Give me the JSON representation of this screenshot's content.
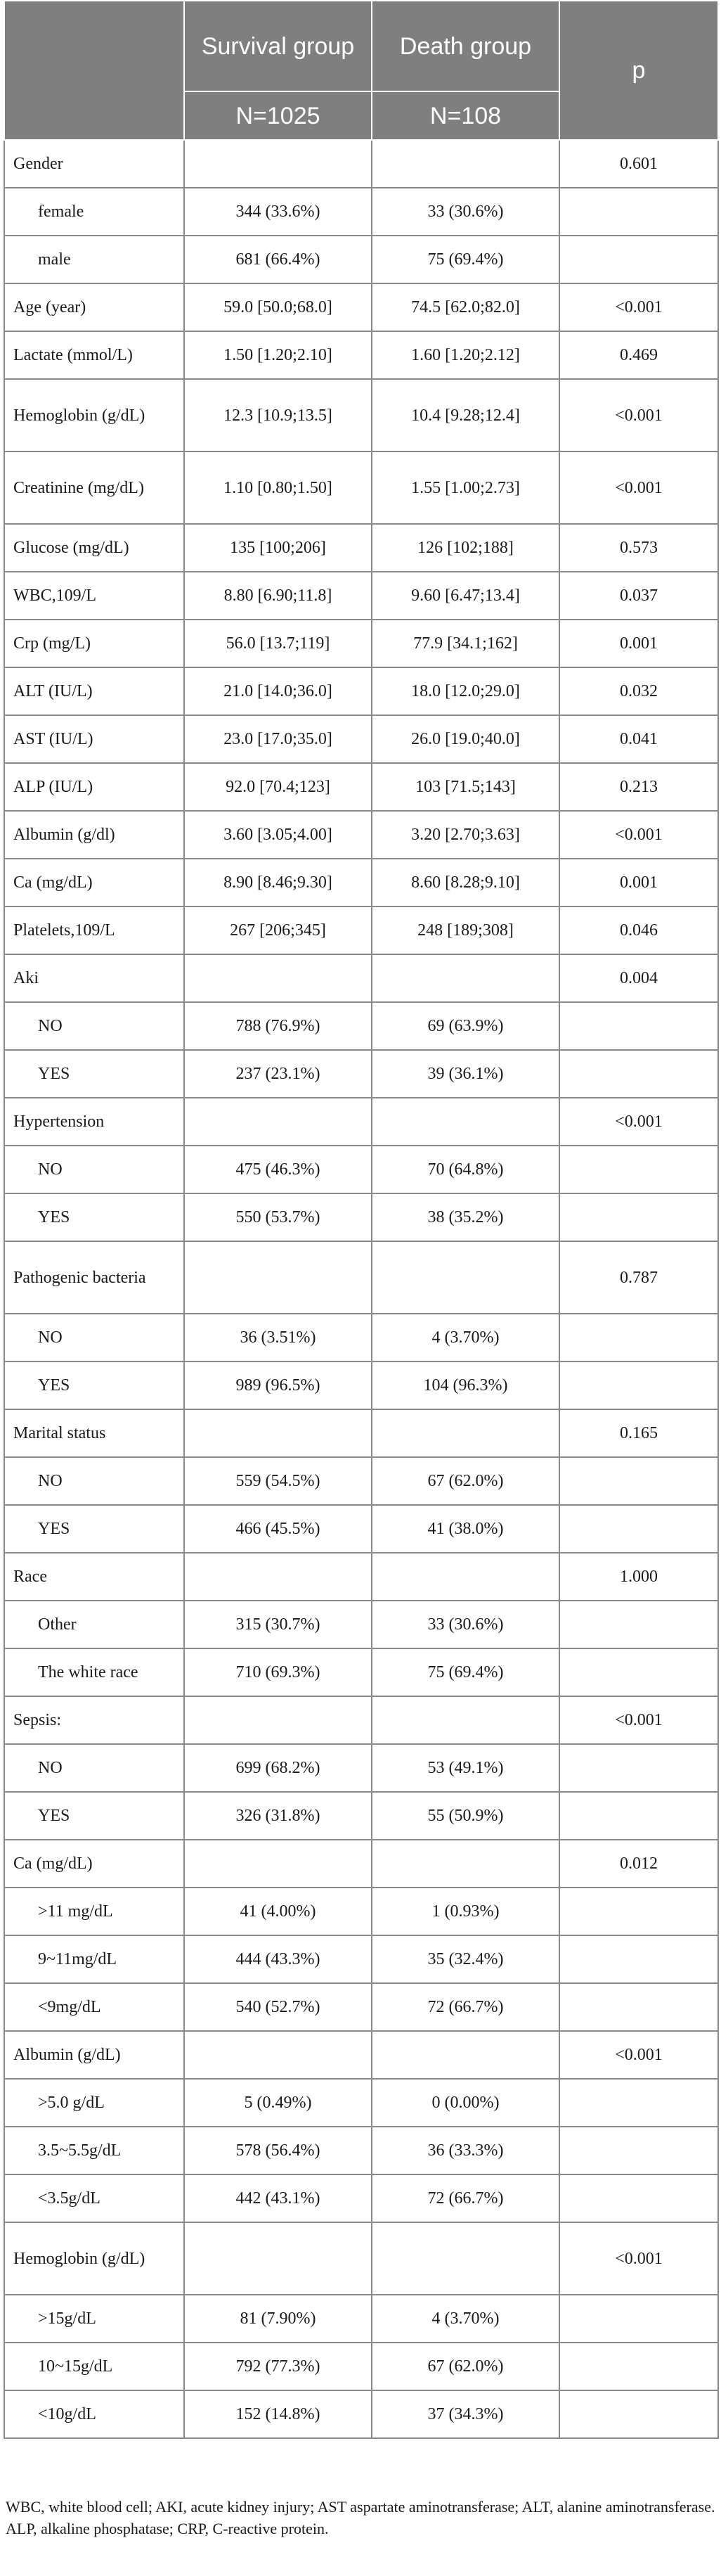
{
  "header": {
    "col_survival": "Survival group",
    "col_death": "Death group",
    "col_p": "p",
    "n_survival": "N=1025",
    "n_death": "N=108"
  },
  "rows": [
    {
      "name": "Gender",
      "sub": false,
      "s": "",
      "d": "",
      "p": "0.601"
    },
    {
      "name": "female",
      "sub": true,
      "s": "344 (33.6%)",
      "d": "33 (30.6%)",
      "p": ""
    },
    {
      "name": "male",
      "sub": true,
      "s": "681 (66.4%)",
      "d": "75 (69.4%)",
      "p": ""
    },
    {
      "name": "Age (year)",
      "sub": false,
      "s": "59.0 [50.0;68.0]",
      "d": "74.5 [62.0;82.0]",
      "p": "<0.001"
    },
    {
      "name": "Lactate (mmol/L)",
      "sub": false,
      "s": "1.50 [1.20;2.10]",
      "d": "1.60 [1.20;2.12]",
      "p": "0.469"
    },
    {
      "name": "Hemoglobin (g/dL)",
      "sub": false,
      "tall": true,
      "s": "12.3 [10.9;13.5]",
      "d": "10.4 [9.28;12.4]",
      "p": "<0.001"
    },
    {
      "name": "Creatinine (mg/dL)",
      "sub": false,
      "tall": true,
      "s": "1.10 [0.80;1.50]",
      "d": "1.55 [1.00;2.73]",
      "p": "<0.001"
    },
    {
      "name": "Glucose (mg/dL)",
      "sub": false,
      "s": "135 [100;206]",
      "d": "126 [102;188]",
      "p": "0.573"
    },
    {
      "name": "WBC,109/L",
      "sub": false,
      "s": "8.80 [6.90;11.8]",
      "d": "9.60 [6.47;13.4]",
      "p": "0.037"
    },
    {
      "name": "Crp (mg/L)",
      "sub": false,
      "s": "56.0 [13.7;119]",
      "d": "77.9 [34.1;162]",
      "p": "0.001"
    },
    {
      "name": "ALT (IU/L)",
      "sub": false,
      "s": "21.0 [14.0;36.0]",
      "d": "18.0 [12.0;29.0]",
      "p": "0.032"
    },
    {
      "name": "AST (IU/L)",
      "sub": false,
      "s": "23.0 [17.0;35.0]",
      "d": "26.0 [19.0;40.0]",
      "p": "0.041"
    },
    {
      "name": "ALP (IU/L)",
      "sub": false,
      "s": "92.0 [70.4;123]",
      "d": "103 [71.5;143]",
      "p": "0.213"
    },
    {
      "name": "Albumin (g/dl)",
      "sub": false,
      "s": "3.60 [3.05;4.00]",
      "d": "3.20 [2.70;3.63]",
      "p": "<0.001"
    },
    {
      "name": "Ca (mg/dL)",
      "sub": false,
      "s": "8.90 [8.46;9.30]",
      "d": "8.60 [8.28;9.10]",
      "p": "0.001"
    },
    {
      "name": "Platelets,109/L",
      "sub": false,
      "s": "267 [206;345]",
      "d": "248 [189;308]",
      "p": "0.046"
    },
    {
      "name": "Aki",
      "sub": false,
      "s": "",
      "d": "",
      "p": "0.004"
    },
    {
      "name": "NO",
      "sub": true,
      "s": "788 (76.9%)",
      "d": "69 (63.9%)",
      "p": ""
    },
    {
      "name": "YES",
      "sub": true,
      "s": "237 (23.1%)",
      "d": "39 (36.1%)",
      "p": ""
    },
    {
      "name": "Hypertension",
      "sub": false,
      "s": "",
      "d": "",
      "p": "<0.001"
    },
    {
      "name": "NO",
      "sub": true,
      "s": "475 (46.3%)",
      "d": "70 (64.8%)",
      "p": ""
    },
    {
      "name": "YES",
      "sub": true,
      "s": "550 (53.7%)",
      "d": "38 (35.2%)",
      "p": ""
    },
    {
      "name": "Pathogenic bacteria",
      "sub": false,
      "tall": true,
      "s": "",
      "d": "",
      "p": "0.787"
    },
    {
      "name": "NO",
      "sub": true,
      "s": "36 (3.51%)",
      "d": "4 (3.70%)",
      "p": ""
    },
    {
      "name": "YES",
      "sub": true,
      "s": "989 (96.5%)",
      "d": "104 (96.3%)",
      "p": ""
    },
    {
      "name": "Marital status",
      "sub": false,
      "s": "",
      "d": "",
      "p": "0.165"
    },
    {
      "name": "NO",
      "sub": true,
      "s": "559 (54.5%)",
      "d": "67 (62.0%)",
      "p": ""
    },
    {
      "name": "YES",
      "sub": true,
      "s": "466 (45.5%)",
      "d": "41 (38.0%)",
      "p": ""
    },
    {
      "name": "Race",
      "sub": false,
      "s": "",
      "d": "",
      "p": "1.000"
    },
    {
      "name": "Other",
      "sub": true,
      "s": "315 (30.7%)",
      "d": "33 (30.6%)",
      "p": ""
    },
    {
      "name": "The white race",
      "sub": true,
      "s": "710 (69.3%)",
      "d": "75 (69.4%)",
      "p": ""
    },
    {
      "name": "Sepsis:",
      "sub": false,
      "s": "",
      "d": "",
      "p": "<0.001"
    },
    {
      "name": "NO",
      "sub": true,
      "s": "699 (68.2%)",
      "d": "53 (49.1%)",
      "p": ""
    },
    {
      "name": "YES",
      "sub": true,
      "s": "326 (31.8%)",
      "d": "55 (50.9%)",
      "p": ""
    },
    {
      "name": "Ca (mg/dL)",
      "sub": false,
      "s": "",
      "d": "",
      "p": "0.012"
    },
    {
      "name": ">11 mg/dL",
      "sub": true,
      "s": "41 (4.00%)",
      "d": "1 (0.93%)",
      "p": ""
    },
    {
      "name": "9~11mg/dL",
      "sub": true,
      "s": "444 (43.3%)",
      "d": "35 (32.4%)",
      "p": ""
    },
    {
      "name": "<9mg/dL",
      "sub": true,
      "s": "540 (52.7%)",
      "d": "72 (66.7%)",
      "p": ""
    },
    {
      "name": "Albumin (g/dL)",
      "sub": false,
      "s": "",
      "d": "",
      "p": "<0.001"
    },
    {
      "name": ">5.0 g/dL",
      "sub": true,
      "s": "5 (0.49%)",
      "d": "0 (0.00%)",
      "p": ""
    },
    {
      "name": "3.5~5.5g/dL",
      "sub": true,
      "s": "578 (56.4%)",
      "d": "36 (33.3%)",
      "p": ""
    },
    {
      "name": "<3.5g/dL",
      "sub": true,
      "s": "442 (43.1%)",
      "d": "72 (66.7%)",
      "p": ""
    },
    {
      "name": "Hemoglobin (g/dL)",
      "sub": false,
      "tall": true,
      "s": "",
      "d": "",
      "p": "<0.001"
    },
    {
      "name": ">15g/dL",
      "sub": true,
      "s": "81 (7.90%)",
      "d": "4 (3.70%)",
      "p": ""
    },
    {
      "name": "10~15g/dL",
      "sub": true,
      "s": "792 (77.3%)",
      "d": "67 (62.0%)",
      "p": ""
    },
    {
      "name": "<10g/dL",
      "sub": true,
      "s": "152 (14.8%)",
      "d": "37 (34.3%)",
      "p": ""
    }
  ],
  "footnote": "WBC, white blood cell; AKI, acute kidney injury; AST aspartate aminotransferase; ALT, alanine aminotransferase. ALP, alkaline phosphatase; CRP, C-reactive protein.",
  "colors": {
    "header_bg": "#7f7f7f",
    "header_text": "#ffffff",
    "grid": "#8a8a8a"
  }
}
